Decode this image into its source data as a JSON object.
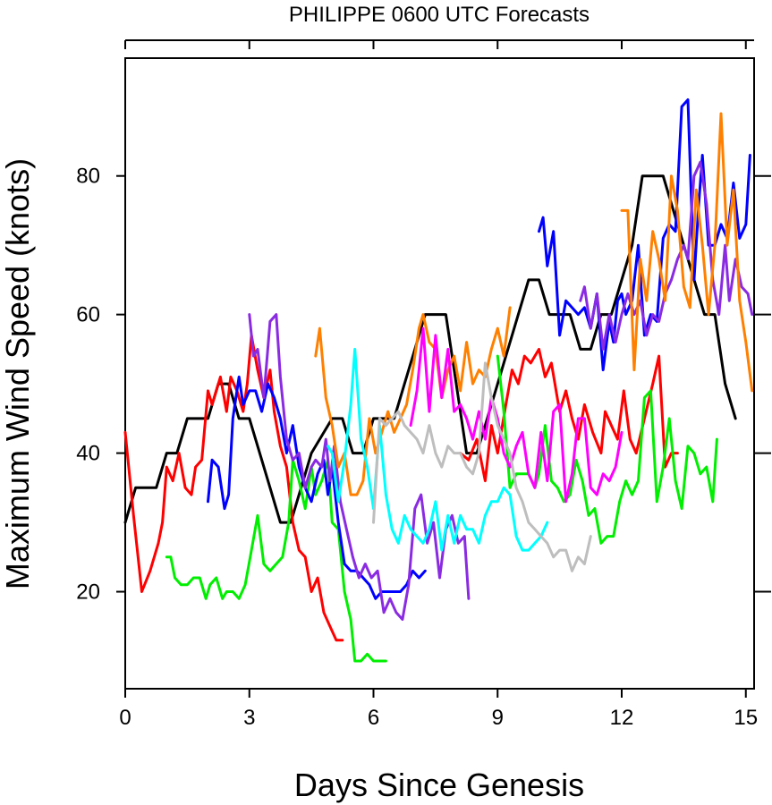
{
  "chart_data": {
    "type": "line",
    "title": "PHILIPPE 0600 UTC Forecasts",
    "xlabel": "Days Since Genesis",
    "ylabel": "Maximum Wind Speed (knots)",
    "xlim": [
      0,
      15.2
    ],
    "ylim": [
      6,
      97
    ],
    "xticks": [
      0,
      3,
      6,
      9,
      12,
      15
    ],
    "yticks": [
      20,
      40,
      60,
      80
    ],
    "grid": false,
    "series": [
      {
        "color": "#000000",
        "x": [
          0,
          0.25,
          0.75,
          1.0,
          1.25,
          1.5,
          2.0,
          2.25,
          2.5,
          2.75,
          3.0,
          3.5,
          3.75,
          4.0,
          4.25,
          4.5,
          5.0,
          5.25,
          5.5,
          5.75,
          6.0,
          6.25,
          6.5,
          6.75,
          7.0,
          7.25,
          7.5,
          7.75,
          8.0,
          8.25,
          8.5,
          8.75,
          9.0,
          9.75,
          10.0,
          10.25,
          10.75,
          11.0,
          11.25,
          11.5,
          11.75,
          12.0,
          12.25,
          12.5,
          13.0,
          13.25,
          13.5,
          14.0,
          14.25,
          14.5,
          14.75
        ],
        "y": [
          30,
          35,
          35,
          40,
          40,
          45,
          45,
          50,
          50,
          45,
          45,
          35,
          30,
          30,
          35,
          40,
          45,
          45,
          40,
          40,
          45,
          45,
          45,
          50,
          55,
          60,
          60,
          60,
          50,
          40,
          40,
          45,
          50,
          65,
          65,
          60,
          60,
          55,
          55,
          60,
          60,
          65,
          70,
          80,
          80,
          75,
          70,
          60,
          60,
          50,
          45
        ]
      },
      {
        "color": "#ff0000",
        "x": [
          0,
          0.2,
          0.4,
          0.6,
          0.8,
          0.9,
          1.0,
          1.15,
          1.3,
          1.45,
          1.6,
          1.7,
          1.85,
          2.0,
          2.1,
          2.3,
          2.45,
          2.55,
          2.7,
          2.85,
          2.95,
          3.05,
          3.2,
          3.35,
          3.5,
          3.6,
          3.75,
          3.9,
          4.05,
          4.2,
          4.35,
          4.5,
          4.65,
          4.8,
          4.95,
          5.1,
          5.25
        ],
        "y": [
          43,
          31,
          20,
          23,
          27,
          30,
          38,
          36,
          40,
          35,
          34,
          38,
          39,
          49,
          47,
          51,
          46,
          51,
          49,
          46,
          50,
          57,
          52,
          48,
          52,
          46,
          41,
          38,
          30,
          26,
          25,
          20,
          22,
          17,
          15,
          13,
          13
        ]
      },
      {
        "color": "#ff0000",
        "x": [
          8.1,
          8.3,
          8.5,
          8.7,
          8.85,
          9.0,
          9.2,
          9.35,
          9.5,
          9.65,
          9.8,
          10.0,
          10.15,
          10.3,
          10.5,
          10.65,
          10.8,
          10.95,
          11.1,
          11.3,
          11.5,
          11.6,
          11.75,
          11.9,
          12.05,
          12.2,
          12.35,
          12.55,
          12.75,
          12.9,
          13.05,
          13.2,
          13.35
        ],
        "y": [
          40,
          39,
          42,
          36,
          44,
          40,
          47,
          52,
          50,
          54,
          53,
          55,
          51,
          53,
          46,
          49,
          45,
          42,
          47,
          43,
          40,
          46,
          44,
          42,
          49,
          42,
          40,
          45,
          50,
          54,
          38,
          40,
          40
        ]
      },
      {
        "color": "#00ee00",
        "x": [
          1.0,
          1.1,
          1.2,
          1.35,
          1.5,
          1.65,
          1.8,
          1.95,
          2.05,
          2.2,
          2.35,
          2.45,
          2.6,
          2.75,
          2.9,
          3.05,
          3.2,
          3.35,
          3.5,
          3.65,
          3.8,
          3.95,
          4.05,
          4.2,
          4.35,
          4.5,
          4.6,
          4.75,
          4.9,
          5.0,
          5.15,
          5.3,
          5.45,
          5.55,
          5.7,
          5.85,
          6.0,
          6.15,
          6.3
        ],
        "y": [
          25,
          25,
          22,
          21,
          21,
          22,
          22,
          19,
          21,
          22,
          19,
          20,
          20,
          19,
          21,
          26,
          31,
          24,
          23,
          24,
          25,
          30,
          39,
          36,
          32,
          38,
          34,
          36,
          39,
          30,
          29,
          20,
          16,
          10,
          10,
          11,
          10,
          10,
          10
        ]
      },
      {
        "color": "#00ee00",
        "x": [
          9.0,
          9.15,
          9.3,
          9.45,
          9.6,
          9.75,
          9.9,
          10.0,
          10.15,
          10.3,
          10.45,
          10.6,
          10.75,
          10.9,
          11.05,
          11.2,
          11.35,
          11.5,
          11.65,
          11.8,
          11.95,
          12.1,
          12.25,
          12.4,
          12.55,
          12.7,
          12.85,
          13.0,
          13.15,
          13.3,
          13.45,
          13.6,
          13.75,
          13.9,
          14.05,
          14.2,
          14.3
        ],
        "y": [
          54,
          46,
          35,
          37,
          37,
          37,
          35,
          37,
          44,
          36,
          35,
          33,
          34,
          39,
          36,
          31,
          32,
          27,
          28,
          28,
          33,
          36,
          34,
          36,
          48,
          49,
          33,
          38,
          45,
          36,
          32,
          41,
          40,
          37,
          38,
          33,
          42
        ]
      },
      {
        "color": "#0000ff",
        "x": [
          2.0,
          2.1,
          2.25,
          2.4,
          2.5,
          2.6,
          2.75,
          2.85,
          3.0,
          3.15,
          3.3,
          3.45,
          3.6,
          3.75,
          3.9,
          4.05,
          4.2,
          4.35,
          4.5,
          4.65,
          4.8,
          4.9,
          5.0,
          5.15,
          5.3,
          5.45,
          5.6,
          5.75,
          5.9,
          6.05,
          6.2,
          6.35,
          6.5,
          6.65,
          6.8,
          6.95,
          7.1,
          7.25
        ],
        "y": [
          33,
          39,
          38,
          32,
          34,
          45,
          51,
          47,
          49,
          49,
          46,
          50,
          48,
          45,
          40,
          44,
          38,
          35,
          33,
          37,
          39,
          34,
          38,
          30,
          24,
          23,
          23,
          22,
          21,
          19,
          20,
          20,
          20,
          20,
          21,
          23,
          22,
          23
        ]
      },
      {
        "color": "#0000ff",
        "x": [
          10.0,
          10.1,
          10.2,
          10.35,
          10.5,
          10.65,
          10.8,
          10.95,
          11.1,
          11.25,
          11.4,
          11.55,
          11.7,
          11.8,
          11.9,
          12.0,
          12.1,
          12.25,
          12.4,
          12.55,
          12.7,
          12.85,
          13.0,
          13.15,
          13.3,
          13.45,
          13.6,
          13.75,
          13.85,
          13.95,
          14.1,
          14.25,
          14.4,
          14.55,
          14.7,
          14.85,
          15.0,
          15.1
        ],
        "y": [
          72,
          74,
          67,
          72,
          57,
          62,
          61,
          60,
          61,
          58,
          63,
          52,
          59,
          56,
          62,
          63,
          60,
          62,
          70,
          57,
          60,
          59,
          71,
          73,
          72,
          90,
          91,
          65,
          75,
          83,
          70,
          70,
          73,
          71,
          79,
          71,
          73,
          83
        ]
      },
      {
        "color": "#8a2be2",
        "x": [
          3.0,
          3.1,
          3.2,
          3.35,
          3.5,
          3.65,
          3.75,
          3.9,
          4.05,
          4.2,
          4.35,
          4.5,
          4.6,
          4.75,
          4.85,
          4.95,
          5.05,
          5.2,
          5.35,
          5.5,
          5.65,
          5.8,
          5.95,
          6.1,
          6.25,
          6.4,
          6.55,
          6.7,
          6.85,
          7.0,
          7.15,
          7.3,
          7.45,
          7.6,
          7.75,
          7.9,
          8.05,
          8.2,
          8.3
        ],
        "y": [
          60,
          54,
          55,
          48,
          59,
          60,
          51,
          42,
          39,
          40,
          35,
          38,
          39,
          38,
          42,
          36,
          41,
          33,
          29,
          25,
          22,
          24,
          22,
          23,
          17,
          19,
          17,
          16,
          21,
          32,
          34,
          27,
          30,
          22,
          29,
          31,
          27,
          28,
          19
        ]
      },
      {
        "color": "#8a2be2",
        "x": [
          11.0,
          11.1,
          11.25,
          11.4,
          11.55,
          11.7,
          11.85,
          12.0,
          12.15,
          12.3,
          12.45,
          12.6,
          12.75,
          12.9,
          13.05,
          13.2,
          13.35,
          13.5,
          13.6,
          13.75,
          13.9,
          14.05,
          14.2,
          14.35,
          14.5,
          14.6,
          14.75,
          14.9,
          15.05,
          15.15
        ],
        "y": [
          62,
          64,
          58,
          63,
          55,
          60,
          56,
          60,
          63,
          60,
          62,
          57,
          60,
          59,
          63,
          65,
          68,
          70,
          68,
          80,
          82,
          76,
          65,
          60,
          70,
          62,
          68,
          64,
          63,
          60
        ]
      },
      {
        "color": "#ff8000",
        "x": [
          4.6,
          4.7,
          4.85,
          5.0,
          5.15,
          5.3,
          5.45,
          5.6,
          5.75,
          5.9,
          6.05,
          6.2,
          6.35,
          6.5,
          6.65,
          6.8,
          6.95,
          7.1,
          7.2,
          7.35,
          7.5,
          7.65,
          7.8,
          7.95,
          8.1,
          8.25,
          8.4,
          8.55,
          8.7,
          8.85,
          9.0,
          9.15,
          9.3
        ],
        "y": [
          54,
          58,
          48,
          44,
          38,
          40,
          34,
          34,
          36,
          45,
          40,
          43,
          46,
          43,
          45,
          47,
          52,
          58,
          60,
          56,
          55,
          48,
          52,
          54,
          49,
          56,
          50,
          52,
          51,
          55,
          58,
          54,
          61
        ]
      },
      {
        "color": "#ff8000",
        "x": [
          12.0,
          12.15,
          12.3,
          12.45,
          12.6,
          12.75,
          12.9,
          13.05,
          13.2,
          13.35,
          13.5,
          13.65,
          13.8,
          13.95,
          14.1,
          14.25,
          14.4,
          14.55,
          14.7,
          14.85,
          15.0,
          15.15
        ],
        "y": [
          75,
          75,
          52,
          68,
          62,
          72,
          68,
          62,
          80,
          75,
          64,
          61,
          78,
          70,
          60,
          70,
          89,
          70,
          78,
          62,
          56,
          49
        ]
      },
      {
        "color": "#ff00ff",
        "x": [
          6.9,
          7.05,
          7.2,
          7.35,
          7.5,
          7.65,
          7.8,
          7.95,
          8.1,
          8.25,
          8.4,
          8.55,
          8.7,
          8.85,
          9.0,
          9.15,
          9.3,
          9.45,
          9.6,
          9.75,
          9.9,
          10.05,
          10.2,
          10.35,
          10.5,
          10.65,
          10.8,
          10.95,
          11.1,
          11.25,
          11.4,
          11.55,
          11.7,
          11.85,
          12.0
        ],
        "y": [
          44,
          49,
          58,
          46,
          57,
          48,
          55,
          46,
          47,
          45,
          42,
          46,
          42,
          48,
          45,
          40,
          38,
          41,
          43,
          37,
          35,
          43,
          36,
          46,
          47,
          33,
          37,
          45,
          45,
          35,
          34,
          37,
          36,
          38,
          43
        ]
      },
      {
        "color": "#00ffff",
        "x": [
          4.9,
          5.0,
          5.15,
          5.3,
          5.45,
          5.55,
          5.7,
          5.85,
          6.0,
          6.15,
          6.3,
          6.45,
          6.6,
          6.75,
          6.9,
          7.05,
          7.2,
          7.35,
          7.5,
          7.65,
          7.8,
          7.95,
          8.1,
          8.25,
          8.4,
          8.55,
          8.7,
          8.85,
          9.0,
          9.15,
          9.3,
          9.45,
          9.6,
          9.75,
          9.9,
          10.05,
          10.2
        ],
        "y": [
          41,
          40,
          33,
          39,
          47,
          55,
          42,
          38,
          32,
          44,
          34,
          29,
          27,
          31,
          29,
          28,
          27,
          29,
          33,
          26,
          31,
          27,
          31,
          29,
          29,
          27,
          31,
          33,
          33,
          35,
          34,
          28,
          26,
          26,
          27,
          28,
          30
        ]
      },
      {
        "color": "#bebebe",
        "x": [
          6.0,
          6.15,
          6.3,
          6.45,
          6.6,
          6.75,
          6.9,
          7.05,
          7.2,
          7.35,
          7.5,
          7.65,
          7.8,
          7.95,
          8.1,
          8.25,
          8.4,
          8.55,
          8.7,
          8.85,
          9.0,
          9.15,
          9.3,
          9.45,
          9.6,
          9.75,
          9.9,
          10.05,
          10.2,
          10.35,
          10.5,
          10.65,
          10.8,
          10.95,
          11.1,
          11.25
        ],
        "y": [
          30,
          45,
          44,
          45,
          46,
          44,
          43,
          42,
          40,
          44,
          40,
          38,
          41,
          40,
          40,
          38,
          37,
          40,
          53,
          48,
          44,
          42,
          40,
          35,
          33,
          30,
          29,
          28,
          27,
          25,
          26,
          26,
          23,
          25,
          24,
          28
        ]
      }
    ]
  }
}
